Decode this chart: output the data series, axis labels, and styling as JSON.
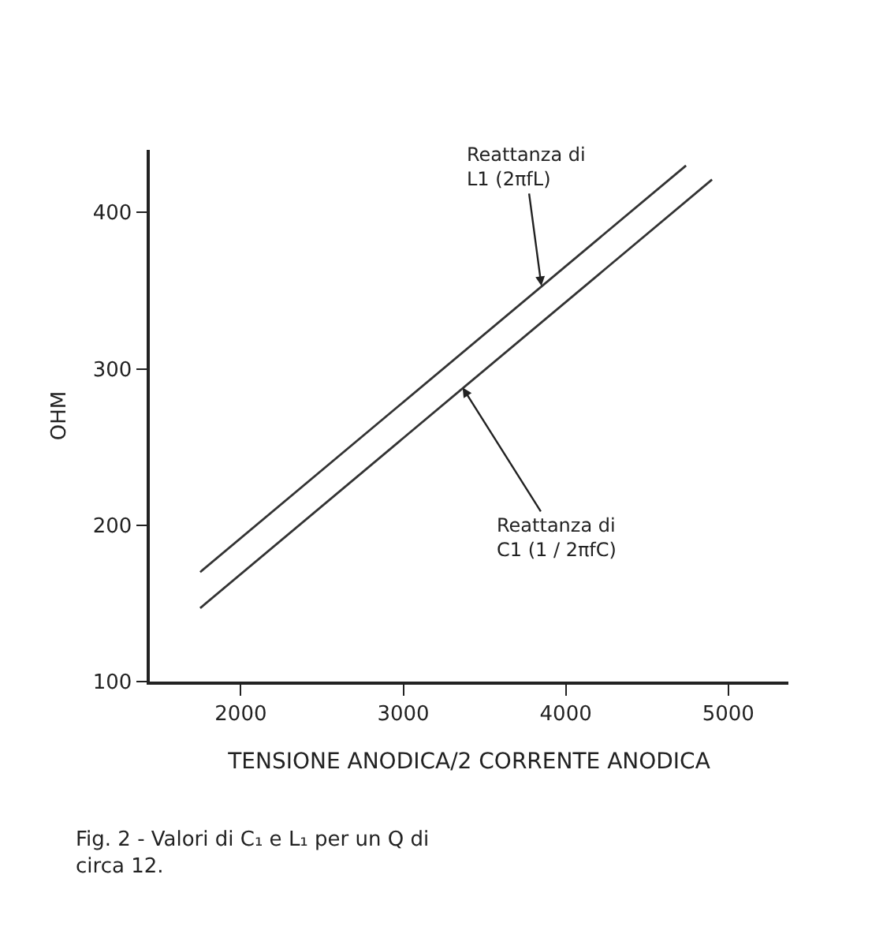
{
  "chart_data": {
    "type": "line",
    "xlabel": "TENSIONE ANODICA/2 CORRENTE ANODICA",
    "ylabel": "OHM",
    "series": [
      {
        "color": "#333333",
        "x": [
          1750,
          4740
        ],
        "values": [
          170,
          430
        ]
      },
      {
        "color": "#333333",
        "x": [
          1750,
          4900
        ],
        "values": [
          147,
          421
        ]
      }
    ],
    "xlim": [
      1440,
      5370
    ],
    "ylim": [
      100,
      440
    ],
    "xticks": [
      2000,
      3000,
      4000,
      5000
    ],
    "yticks": [
      100,
      200,
      300,
      400
    ],
    "marker": "none",
    "line_style": "solid",
    "annotations": [
      {
        "text": "Reattanza di\nL1 (2πfL)",
        "x": 3850,
        "y": 353
      },
      {
        "text": "Reattanza di\nC1 (1 / 2πfC)",
        "x": 3365,
        "y": 288
      },
      "Fig. 2 - Valori di C₁ e L₁ per un Q di\ncirca 12."
    ]
  }
}
